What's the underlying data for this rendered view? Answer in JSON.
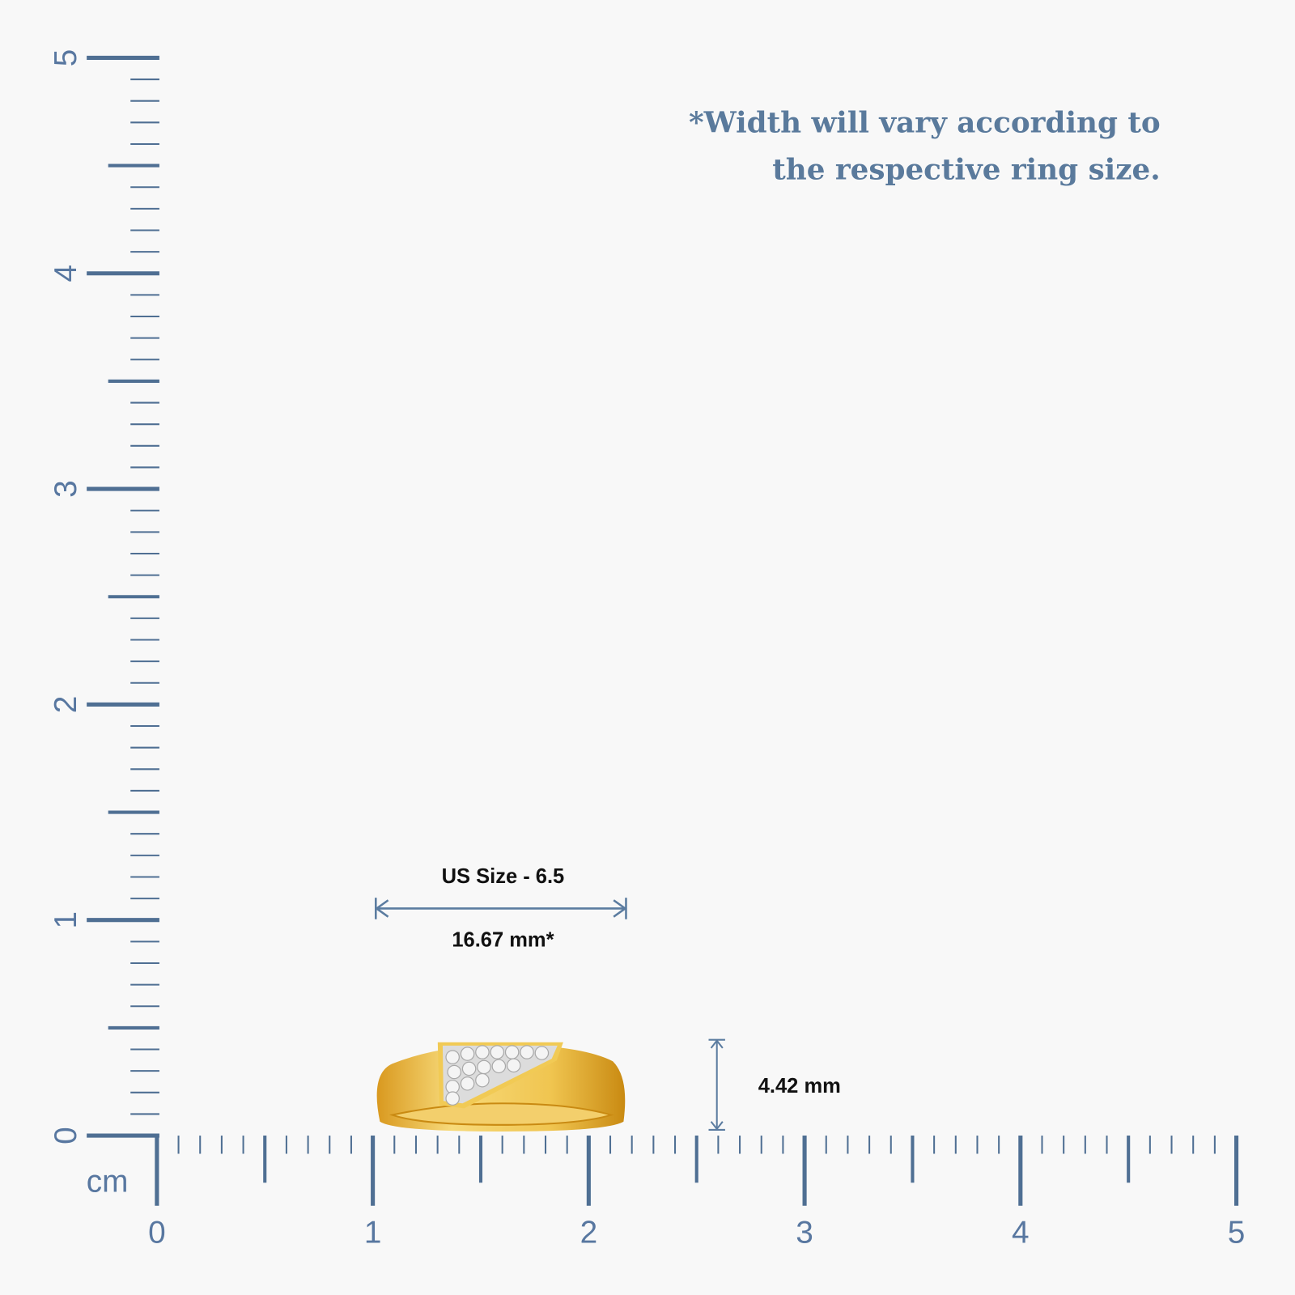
{
  "note": {
    "lines": [
      "*Width will vary according to",
      "the respective ring size."
    ]
  },
  "ruler": {
    "unit": "cm",
    "x_labels": [
      "0",
      "1",
      "2",
      "3",
      "4",
      "5"
    ],
    "y_labels": [
      "0",
      "1",
      "2",
      "3",
      "4",
      "5"
    ]
  },
  "ring": {
    "size_label": "US Size - 6.5",
    "width_label": "16.67 mm*",
    "height_label": "4.42 mm"
  }
}
